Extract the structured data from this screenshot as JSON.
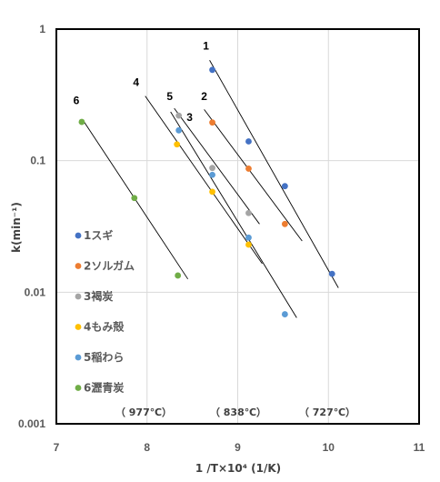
{
  "chart_data": {
    "type": "scatter",
    "xlabel": "1 /T×10⁴ (1/K)",
    "ylabel": "k(min⁻¹)",
    "xlim": [
      7,
      11
    ],
    "ylim": [
      0.001,
      1
    ],
    "y_scale": "log",
    "grid": true,
    "x_ticks": [
      "7",
      "8",
      "9",
      "10",
      "11"
    ],
    "y_ticks": [
      "1",
      "0.1",
      "0.01",
      "0.001"
    ],
    "series": [
      {
        "name": "1スギ",
        "label": "1",
        "color": "#4472C4",
        "points": [
          [
            8.72,
            0.49
          ],
          [
            9.12,
            0.14
          ],
          [
            9.52,
            0.064
          ],
          [
            10.04,
            0.0138
          ]
        ],
        "fit": [
          [
            8.69,
            0.58
          ],
          [
            10.11,
            0.0108
          ]
        ]
      },
      {
        "name": "2ソルガム",
        "label": "2",
        "color": "#ED7D31",
        "points": [
          [
            8.72,
            0.195
          ],
          [
            9.12,
            0.087
          ],
          [
            9.52,
            0.033
          ]
        ],
        "fit": [
          [
            8.63,
            0.245
          ],
          [
            9.71,
            0.0245
          ]
        ]
      },
      {
        "name": "3褐炭",
        "label": "3",
        "color": "#A5A5A5",
        "points": [
          [
            8.35,
            0.22
          ],
          [
            8.72,
            0.088
          ],
          [
            9.12,
            0.04
          ]
        ],
        "fit": [
          [
            8.3,
            0.25
          ],
          [
            9.24,
            0.033
          ]
        ]
      },
      {
        "name": "4もみ殻",
        "label": "4",
        "color": "#FFC000",
        "points": [
          [
            8.33,
            0.133
          ],
          [
            8.72,
            0.058
          ],
          [
            9.12,
            0.023
          ]
        ],
        "fit": [
          [
            7.98,
            0.31
          ],
          [
            9.27,
            0.0165
          ]
        ]
      },
      {
        "name": "5稲わら",
        "label": "5",
        "color": "#5B9BD5",
        "points": [
          [
            8.35,
            0.17
          ],
          [
            8.72,
            0.078
          ],
          [
            9.12,
            0.026
          ],
          [
            9.52,
            0.0068
          ]
        ],
        "fit": [
          [
            8.26,
            0.235
          ],
          [
            9.65,
            0.0064
          ]
        ]
      },
      {
        "name": "6瀝青炭",
        "label": "6",
        "color": "#70AD47",
        "points": [
          [
            7.28,
            0.197
          ],
          [
            7.86,
            0.052
          ],
          [
            8.34,
            0.0134
          ]
        ],
        "fit": [
          [
            7.29,
            0.205
          ],
          [
            8.45,
            0.0126
          ]
        ]
      }
    ],
    "series_labels_pos": [
      {
        "label": "1",
        "x": 8.65,
        "y": 0.7
      },
      {
        "label": "2",
        "x": 8.63,
        "y": 0.29
      },
      {
        "label": "3",
        "x": 8.47,
        "y": 0.2
      },
      {
        "label": "4",
        "x": 7.88,
        "y": 0.37
      },
      {
        "label": "5",
        "x": 8.25,
        "y": 0.29
      },
      {
        "label": "6",
        "x": 7.22,
        "y": 0.27
      }
    ],
    "annotations": [
      "（ 977℃）",
      "（ 838℃）",
      "（ 727℃）"
    ],
    "legend_position": "left"
  }
}
